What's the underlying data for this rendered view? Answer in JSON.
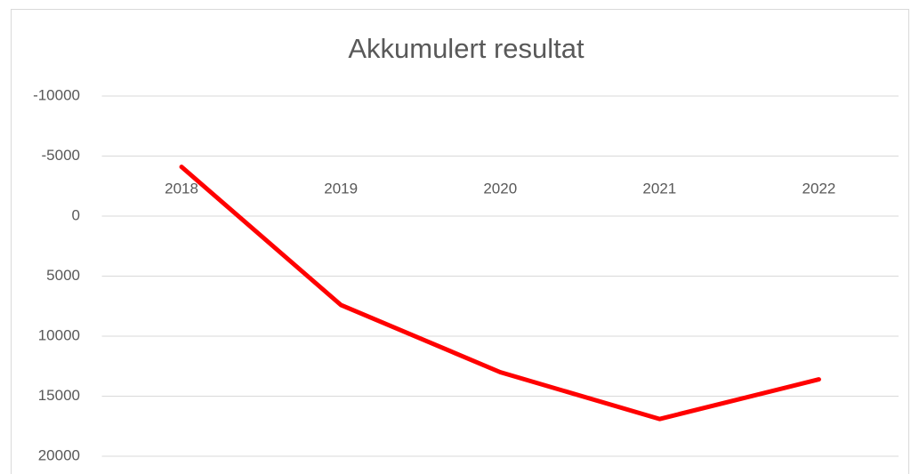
{
  "chart_data": {
    "type": "line",
    "title": "Akkumulert resultat",
    "categories": [
      "2018",
      "2019",
      "2020",
      "2021",
      "2022"
    ],
    "series": [
      {
        "name": "Akkumulert resultat",
        "color": "#ff0000",
        "values": [
          -4100,
          7400,
          13000,
          16900,
          13600
        ]
      }
    ],
    "ylim": [
      -10000,
      20000
    ],
    "y_inverted": true,
    "yticks": [
      -10000,
      -5000,
      0,
      5000,
      10000,
      15000,
      20000
    ],
    "grid": true
  }
}
